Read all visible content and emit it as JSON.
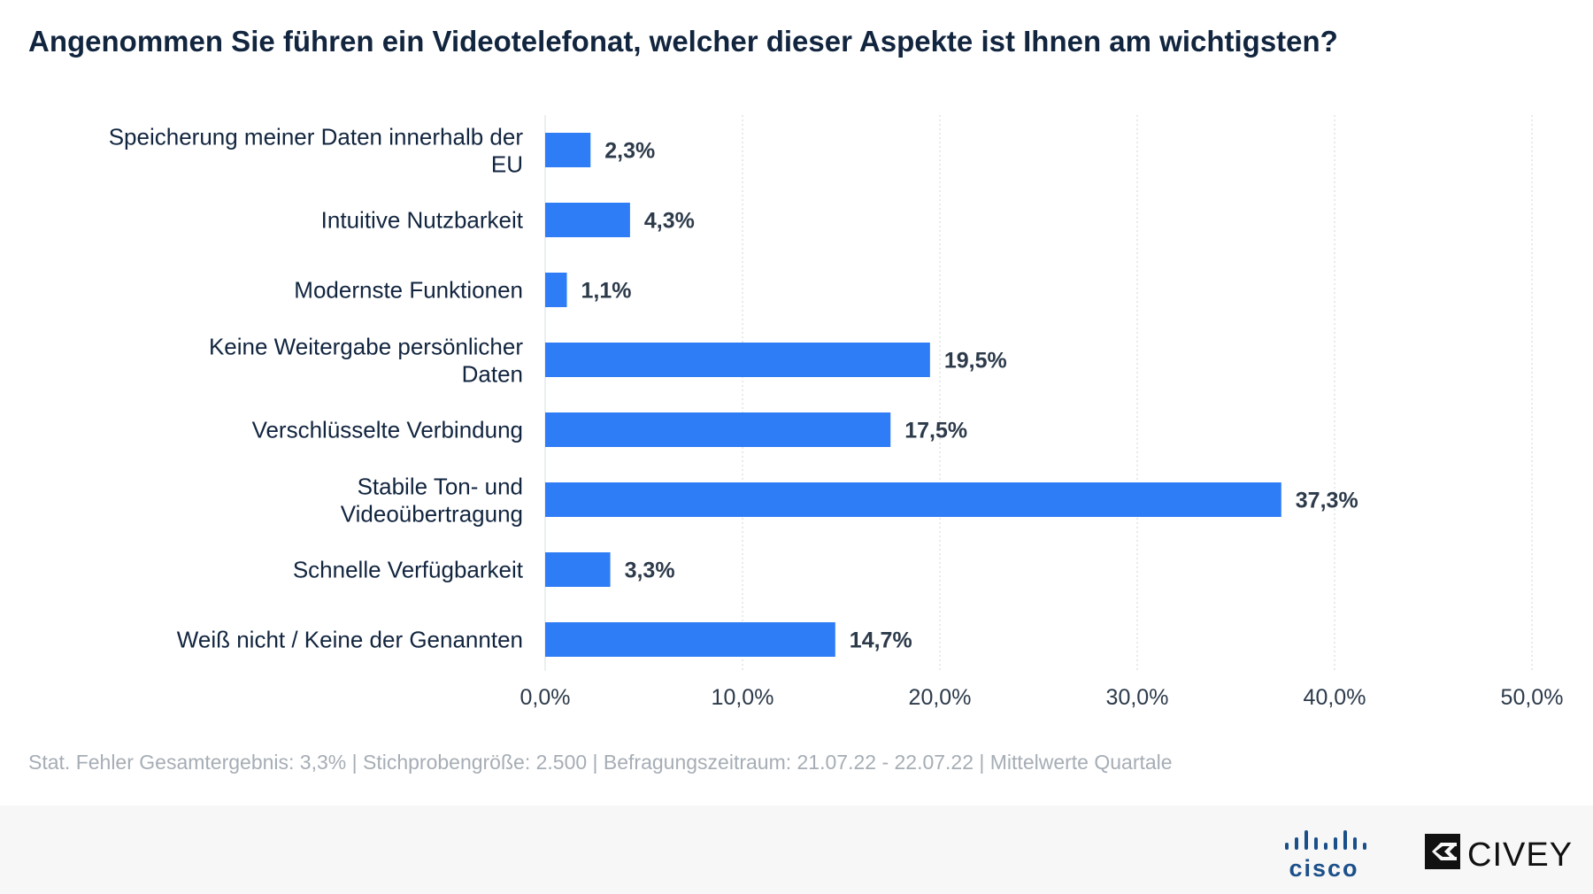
{
  "chart_data": {
    "type": "bar",
    "orientation": "horizontal",
    "title": "Angenommen Sie führen ein Videotelefonat, welcher dieser Aspekte ist Ihnen am wichtigsten?",
    "categories": [
      "Speicherung meiner Daten innerhalb der EU",
      "Intuitive Nutzbarkeit",
      "Modernste Funktionen",
      "Keine Weitergabe persönlicher Daten",
      "Verschlüsselte Verbindung",
      "Stabile Ton- und Videoübertragung",
      "Schnelle Verfügbarkeit",
      "Weiß nicht / Keine der Genannten"
    ],
    "values": [
      2.3,
      4.3,
      1.1,
      19.5,
      17.5,
      37.3,
      3.3,
      14.7
    ],
    "value_labels": [
      "2,3%",
      "4,3%",
      "1,1%",
      "19,5%",
      "17,5%",
      "37,3%",
      "3,3%",
      "14,7%"
    ],
    "xlim": [
      0,
      50
    ],
    "x_ticks": [
      0,
      10,
      20,
      30,
      40,
      50
    ],
    "x_tick_labels": [
      "0,0%",
      "10,0%",
      "20,0%",
      "30,0%",
      "40,0%",
      "50,0%"
    ],
    "grid": "vertical dotted",
    "bar_color": "#2e7cf6"
  },
  "footnote": "Stat. Fehler Gesamtergebnis: 3,3% | Stichprobengröße: 2.500 | Befragungszeitraum: 21.07.22 - 22.07.22 | Mittelwerte Quartale",
  "logos": {
    "cisco": {
      "text": "cisco",
      "color": "#1b4f8a"
    },
    "civey": {
      "text": "CIVEY",
      "color": "#111111"
    }
  }
}
